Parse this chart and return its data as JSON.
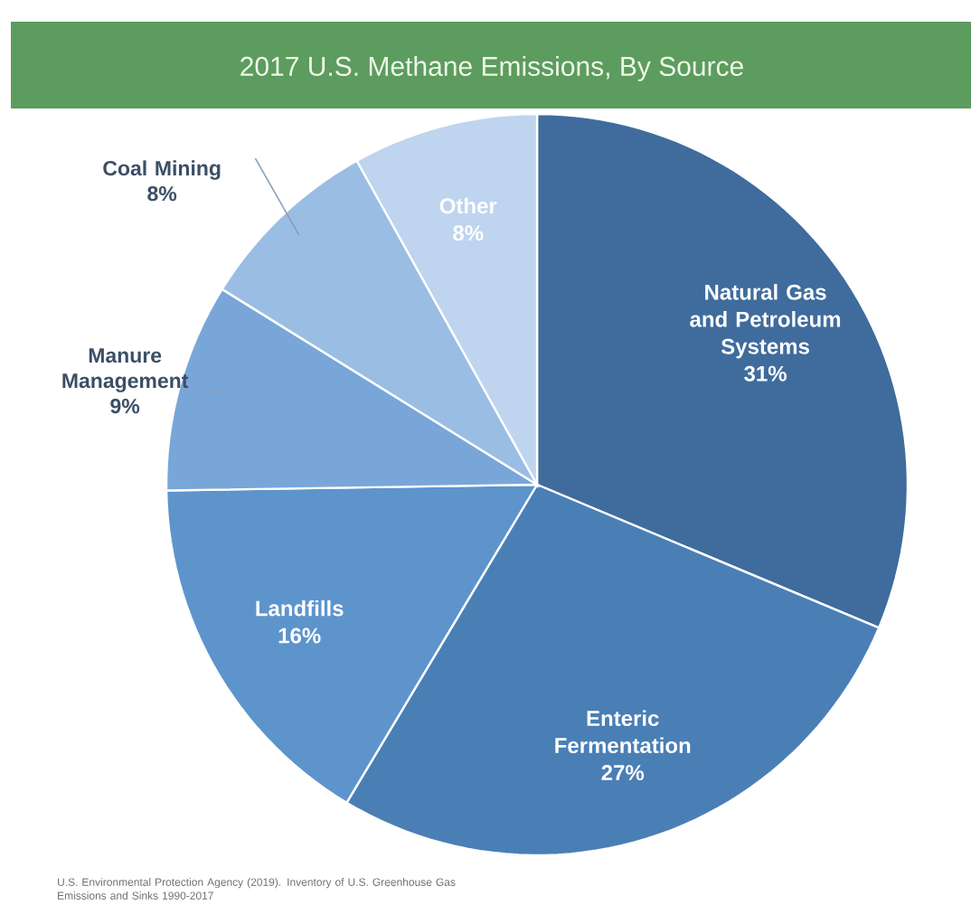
{
  "chart_data": {
    "type": "pie",
    "title": "2017 U.S. Methane Emissions, By Source",
    "categories": [
      "Natural Gas and Petroleum Systems",
      "Enteric Fermentation",
      "Landfills",
      "Manure Management",
      "Coal Mining",
      "Other"
    ],
    "values": [
      31,
      27,
      16,
      9,
      8,
      8
    ],
    "value_labels": [
      "31%",
      "27%",
      "16%",
      "9%",
      "8%",
      "8%"
    ],
    "colors": [
      "#3f6c9c",
      "#4a7fb6",
      "#5e94cc",
      "#79a6d8",
      "#9abde4",
      "#bed4ef"
    ],
    "legend": false,
    "annotations": [
      "U.S. Environmental Protection Agency (2019). Inventory of U.S. Greenhouse Gas Emissions and Sinks 1990-2017"
    ]
  }
}
